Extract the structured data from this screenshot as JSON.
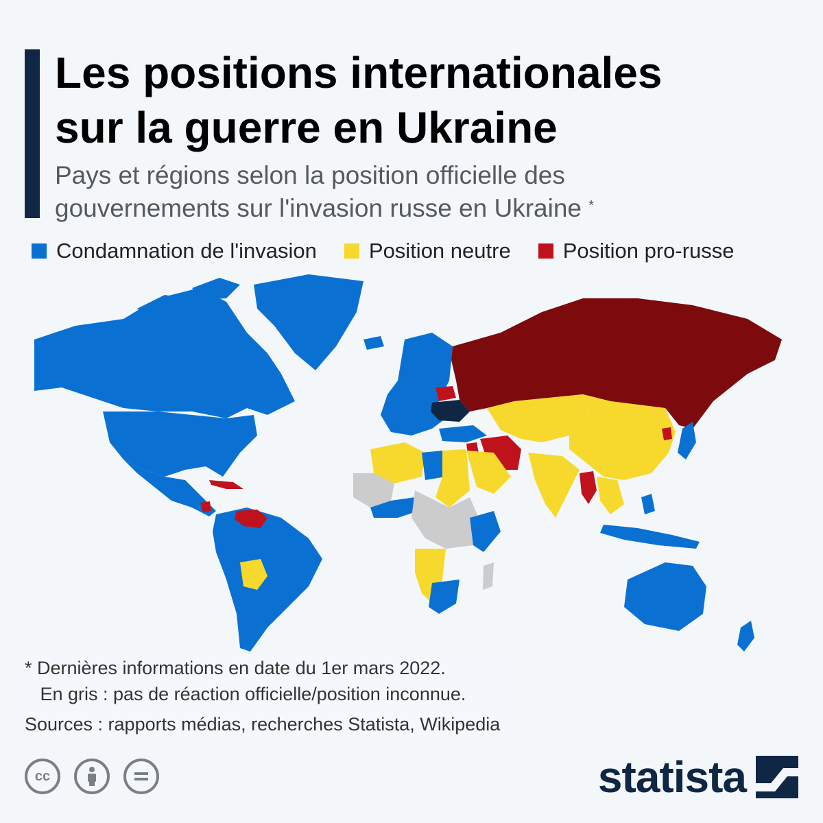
{
  "header": {
    "title_line1": "Les positions internationales",
    "title_line2": "sur la guerre en Ukraine",
    "subtitle_line1": "Pays et régions selon la position officielle des",
    "subtitle_line2": "gouvernements sur l'invasion russe en Ukraine",
    "subtitle_marker": "*"
  },
  "legend": {
    "items": [
      {
        "label": "Condamnation de l'invasion",
        "color": "#0a71d3"
      },
      {
        "label": "Position neutre",
        "color": "#f7d92d"
      },
      {
        "label": "Position pro-russe",
        "color": "#c0121c"
      }
    ]
  },
  "map_colors": {
    "condemn": "#0a71d3",
    "neutral": "#f7d92d",
    "pro_russia": "#c0121c",
    "russia": "#7d0a0d",
    "ukraine": "#0f2744",
    "unknown": "#cccccc"
  },
  "footnote": {
    "line1": "* Dernières informations en date du 1er mars 2022.",
    "line2": "   En gris : pas de réaction officielle/position inconnue.",
    "sources": "Sources : rapports médias, recherches Statista, Wikipedia"
  },
  "license_icons": [
    "cc-icon",
    "attribution-icon",
    "no-derivatives-icon"
  ],
  "brand": {
    "name": "statista"
  }
}
